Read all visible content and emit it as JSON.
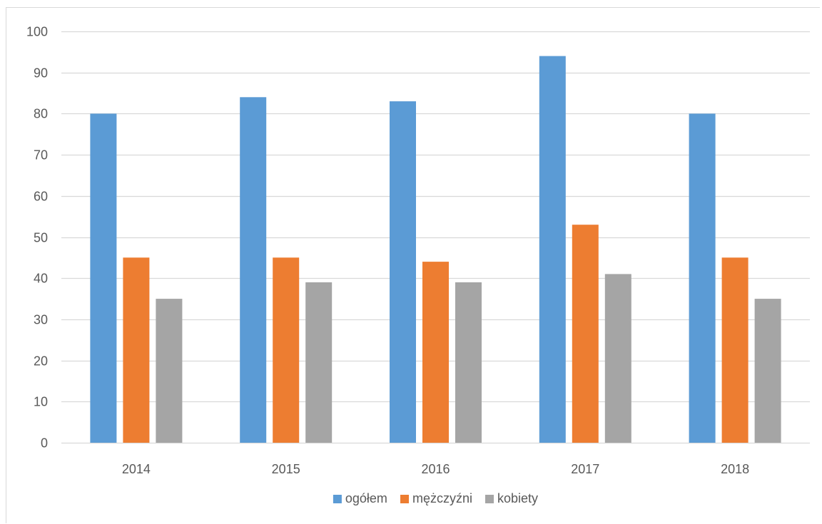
{
  "chart_data": {
    "type": "bar",
    "categories": [
      "2014",
      "2015",
      "2016",
      "2017",
      "2018"
    ],
    "series": [
      {
        "name": "ogółem",
        "values": [
          80,
          84,
          83,
          94,
          80
        ],
        "color": "#5b9bd5"
      },
      {
        "name": "mężczyźni",
        "values": [
          45,
          45,
          44,
          53,
          45
        ],
        "color": "#ed7d31"
      },
      {
        "name": "kobiety",
        "values": [
          35,
          39,
          39,
          41,
          35
        ],
        "color": "#a5a5a5"
      }
    ],
    "title": "",
    "xlabel": "",
    "ylabel": "",
    "ylim": [
      0,
      100
    ],
    "yticks": [
      0,
      10,
      20,
      30,
      40,
      50,
      60,
      70,
      80,
      90,
      100
    ],
    "grid": true,
    "legend_position": "bottom",
    "colors": {
      "gridline": "#d9d9d9",
      "axis_text": "#595959"
    }
  }
}
